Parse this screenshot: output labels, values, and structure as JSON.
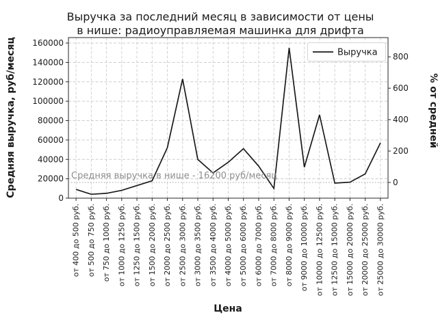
{
  "chart_data": {
    "type": "line",
    "title_lines": [
      "Выручка за последний месяц в зависимости от цены",
      "в нише: радиоуправляемая машинка для дрифта"
    ],
    "title": "Выручка за последний месяц в зависимости от цены в нише: радиоуправляемая машинка для дрифта",
    "xlabel": "Цена",
    "ylabel_left": "Средняя выручка, руб/месяц",
    "ylabel_right": "% от средней",
    "legend_label": "Выручка",
    "legend_position": "top-right",
    "grid": true,
    "categories": [
      "от 400 до 500 руб.",
      "от 500 до 750 руб.",
      "от 750 до 1000 руб.",
      "от 1000 до 1250 руб.",
      "от 1250 до 1500 руб.",
      "от 1500 до 2000 руб.",
      "от 2000 до 2500 руб.",
      "от 2500 до 3000 руб.",
      "от 3000 до 3500 руб.",
      "от 3500 до 4000 руб.",
      "от 4000 до 5000 руб.",
      "от 5000 до 6000 руб.",
      "от 6000 до 7000 руб.",
      "от 7000 до 8000 руб.",
      "от 8000 до 9000 руб.",
      "от 9000 до 10000 руб.",
      "от 10000 до 12500 руб.",
      "от 12500 до 15000 руб.",
      "от 15000 до 20000 руб.",
      "от 20000 до 25000 руб.",
      "от 25000 до 30000 руб."
    ],
    "series": [
      {
        "name": "Выручка",
        "values": [
          9000,
          4000,
          5000,
          8000,
          13000,
          18000,
          52000,
          123000,
          40000,
          26000,
          37000,
          51000,
          33000,
          10000,
          155000,
          32000,
          86000,
          15500,
          16500,
          25000,
          57000
        ]
      }
    ],
    "ylim_left": [
      0,
      160000
    ],
    "yticks_left": [
      0,
      20000,
      40000,
      60000,
      80000,
      100000,
      120000,
      140000,
      160000
    ],
    "yticks_right_pct": [
      0,
      200,
      400,
      600,
      800
    ],
    "average_value": 16200,
    "average_label": "Средняя выручка в нише - 16200 руб/месяц",
    "line_color": "#1a1a1a",
    "grid_color": "#cccccc",
    "avg_line_color": "#b3b3b3",
    "annotation_color": "#8e8e8e"
  }
}
